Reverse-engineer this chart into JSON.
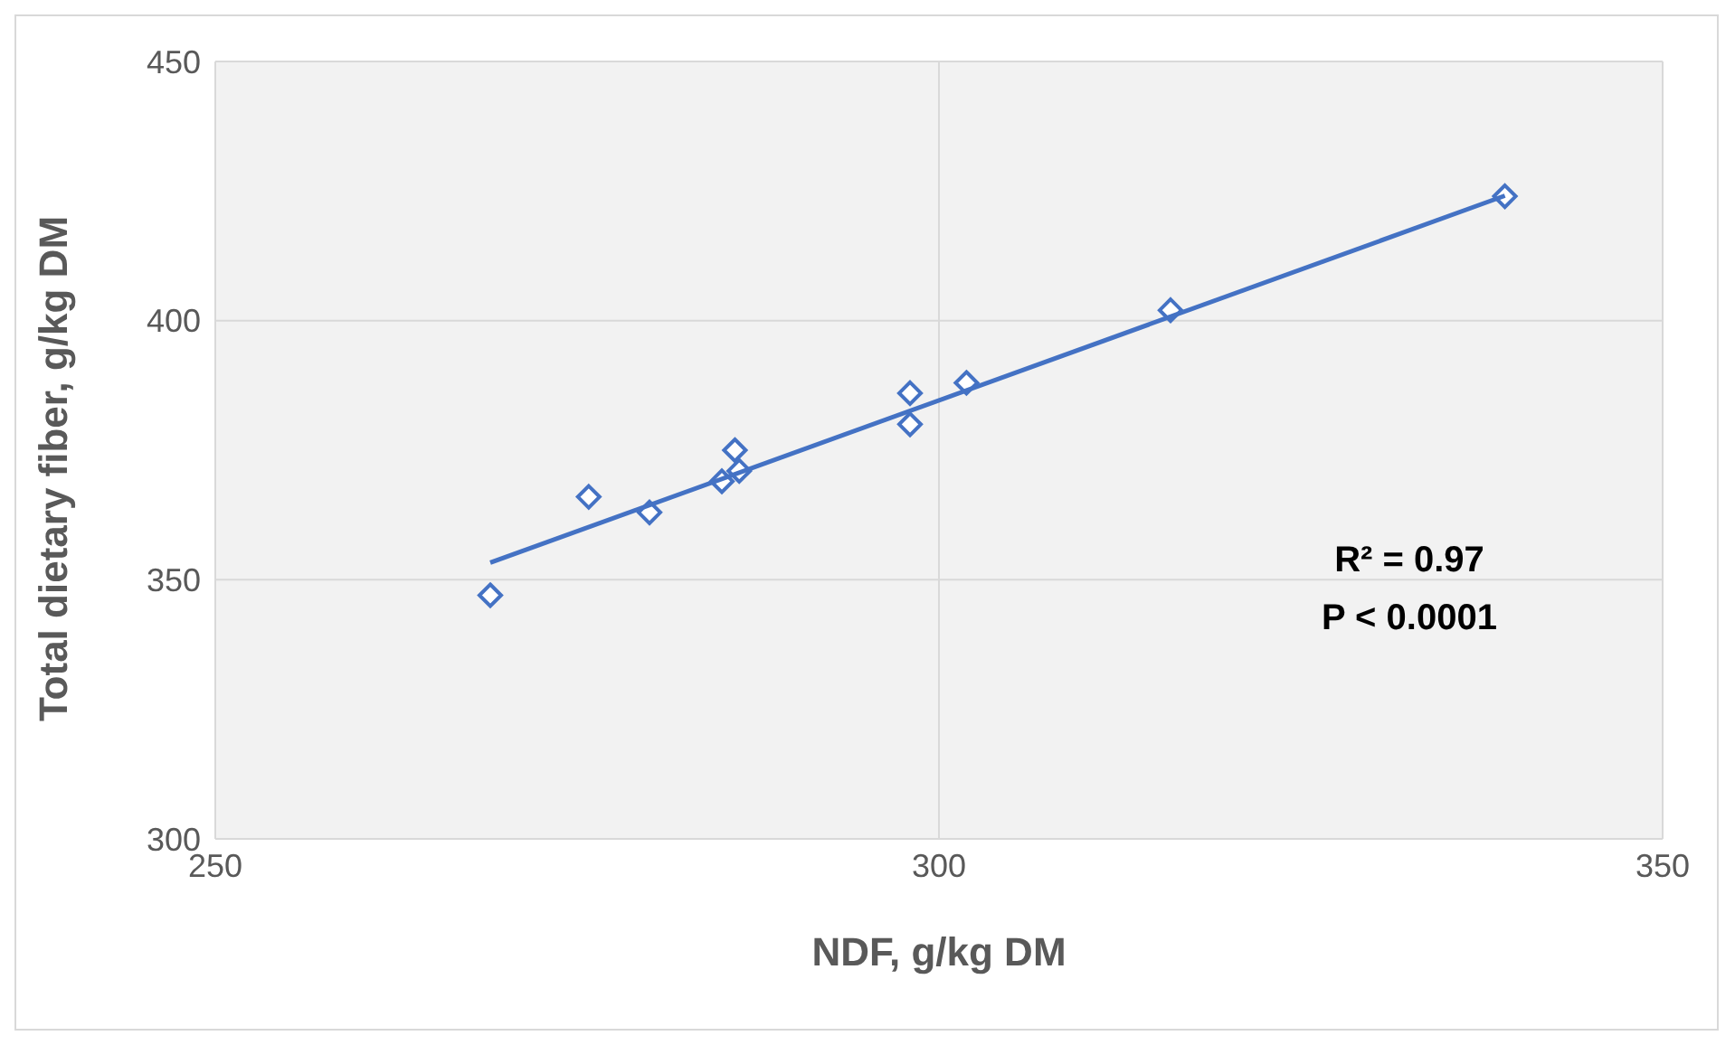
{
  "chart_data": {
    "type": "scatter",
    "xlabel": "NDF, g/kg DM",
    "ylabel": "Total dietary fiber, g/kg DM",
    "xlim": [
      250,
      350
    ],
    "xticks": [
      250,
      300,
      350
    ],
    "ylim": [
      300,
      450
    ],
    "yticks": [
      300,
      350,
      400,
      450
    ],
    "grid": true,
    "legend": false,
    "series": [
      {
        "color": "#4472c4",
        "marker": "diamond",
        "x": [
          269,
          275.8,
          280,
          285,
          285.9,
          286.2,
          298,
          298,
          301.9,
          316,
          339.1
        ],
        "values": [
          347,
          366,
          363,
          369,
          375,
          371,
          380,
          386,
          388,
          402,
          424
        ]
      },
      {
        "type": "line",
        "color": "#4472c4",
        "marker": "none",
        "x": [
          269,
          339.1
        ],
        "values": [
          353.3,
          424.1
        ]
      }
    ],
    "annotations": [
      "R² = 0.97",
      "P < 0.0001"
    ]
  }
}
